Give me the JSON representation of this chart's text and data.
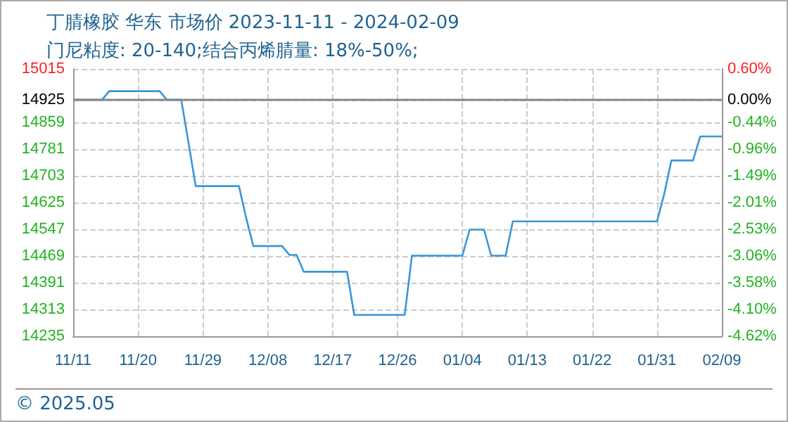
{
  "chart_data": {
    "type": "line",
    "title": "丁腈橡胶 华东 市场价 2023-11-11 - 2024-02-09",
    "subtitle": "门尼粘度: 20-140;结合丙烯腈量: 18%-50%;",
    "x": [
      "2023-11-11",
      "2023-11-15",
      "2023-11-16",
      "2023-11-23",
      "2023-11-24",
      "2023-11-26",
      "2023-11-27",
      "2023-11-28",
      "2023-12-04",
      "2023-12-05",
      "2023-12-06",
      "2023-12-10",
      "2023-12-11",
      "2023-12-12",
      "2023-12-13",
      "2023-12-19",
      "2023-12-20",
      "2023-12-27",
      "2023-12-28",
      "2024-01-04",
      "2024-01-05",
      "2024-01-07",
      "2024-01-08",
      "2024-01-10",
      "2024-01-11",
      "2024-01-31",
      "2024-02-01",
      "2024-02-02",
      "2024-02-05",
      "2024-02-06",
      "2024-02-09"
    ],
    "series": [
      {
        "color": "#3a96d6",
        "values": [
          14925,
          14925,
          14950,
          14950,
          14925,
          14925,
          14800,
          14673,
          14673,
          14580,
          14498,
          14498,
          14472,
          14472,
          14423,
          14423,
          14297,
          14297,
          14470,
          14470,
          14546,
          14546,
          14470,
          14470,
          14570,
          14570,
          14650,
          14748,
          14748,
          14818,
          14818
        ]
      }
    ],
    "xlim": [
      "2023-11-11",
      "2024-02-09"
    ],
    "xticks": [
      {
        "value": "2023-11-11",
        "label": "11/11"
      },
      {
        "value": "2023-11-20",
        "label": "11/20"
      },
      {
        "value": "2023-11-29",
        "label": "11/29"
      },
      {
        "value": "2023-12-08",
        "label": "12/08"
      },
      {
        "value": "2023-12-17",
        "label": "12/17"
      },
      {
        "value": "2023-12-26",
        "label": "12/26"
      },
      {
        "value": "2024-01-04",
        "label": "01/04"
      },
      {
        "value": "2024-01-13",
        "label": "01/13"
      },
      {
        "value": "2024-01-22",
        "label": "01/22"
      },
      {
        "value": "2024-01-31",
        "label": "01/31"
      },
      {
        "value": "2024-02-09",
        "label": "02/09"
      }
    ],
    "ylim": [
      14235,
      15015
    ],
    "yticks": [
      14235,
      14313,
      14391,
      14469,
      14547,
      14625,
      14703,
      14781,
      14859,
      14925,
      15015
    ],
    "y2lim": [
      -4.62,
      0.6
    ],
    "y2ticks": [
      {
        "value": -4.62,
        "label": "-4.62%"
      },
      {
        "value": -4.1,
        "label": "-4.10%"
      },
      {
        "value": -3.58,
        "label": "-3.58%"
      },
      {
        "value": -3.06,
        "label": "-3.06%"
      },
      {
        "value": -2.53,
        "label": "-2.53%"
      },
      {
        "value": -2.01,
        "label": "-2.01%"
      },
      {
        "value": -1.49,
        "label": "-1.49%"
      },
      {
        "value": -0.96,
        "label": "-0.96%"
      },
      {
        "value": -0.44,
        "label": "-0.44%"
      },
      {
        "value": 0,
        "label": "0.00%"
      },
      {
        "value": 0.6,
        "label": "0.60%"
      }
    ],
    "ref_lines": [
      {
        "axis": "y",
        "value": 14925,
        "color": "#888888"
      }
    ],
    "annotations": [
      "© 2025.05"
    ],
    "grid": true,
    "marker": "none",
    "line_style": "solid"
  }
}
